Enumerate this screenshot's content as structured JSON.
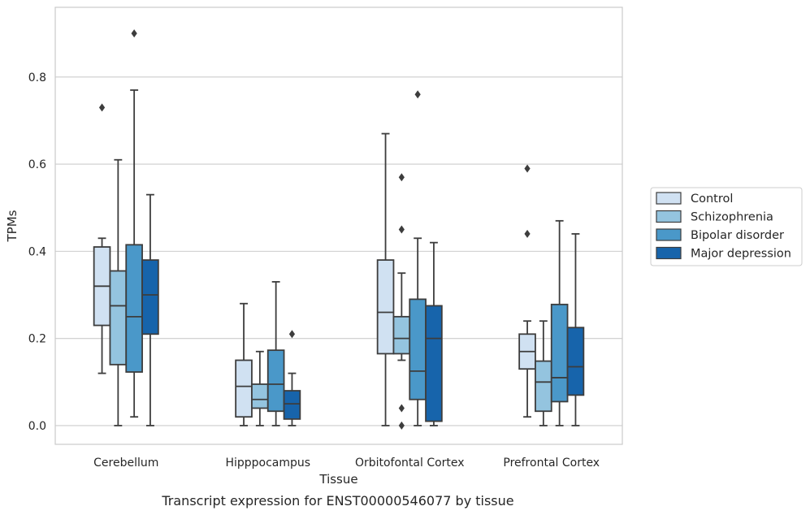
{
  "caption": "Transcript expression for ENST00000546077 by tissue",
  "chart_data": {
    "type": "box",
    "title": "",
    "xlabel": "Tissue",
    "ylabel": "TPMs",
    "ylim": [
      -0.043,
      0.96
    ],
    "yticks": [
      "0.0",
      "0.2",
      "0.4",
      "0.6",
      "0.8"
    ],
    "grid": "horizontal",
    "legend_position": "right",
    "categories": [
      "Cerebellum",
      "Hipppocampus",
      "Orbitofontal Cortex",
      "Prefrontal Cortex"
    ],
    "series": [
      {
        "name": "Control",
        "color": "#d0e1f2",
        "boxes": [
          {
            "whislo": 0.12,
            "q1": 0.23,
            "med": 0.32,
            "q3": 0.41,
            "whishi": 0.43,
            "fliers": [
              0.73
            ]
          },
          {
            "whislo": 0.0,
            "q1": 0.02,
            "med": 0.09,
            "q3": 0.15,
            "whishi": 0.28,
            "fliers": []
          },
          {
            "whislo": 0.0,
            "q1": 0.165,
            "med": 0.26,
            "q3": 0.38,
            "whishi": 0.67,
            "fliers": []
          },
          {
            "whislo": 0.02,
            "q1": 0.13,
            "med": 0.17,
            "q3": 0.21,
            "whishi": 0.24,
            "fliers": [
              0.44,
              0.59
            ]
          }
        ]
      },
      {
        "name": "Schizophrenia",
        "color": "#94c4df",
        "boxes": [
          {
            "whislo": 0.0,
            "q1": 0.14,
            "med": 0.275,
            "q3": 0.355,
            "whishi": 0.61,
            "fliers": []
          },
          {
            "whislo": 0.0,
            "q1": 0.04,
            "med": 0.06,
            "q3": 0.095,
            "whishi": 0.17,
            "fliers": []
          },
          {
            "whislo": 0.15,
            "q1": 0.165,
            "med": 0.2,
            "q3": 0.25,
            "whishi": 0.35,
            "fliers": [
              0.57,
              0.45,
              0.04,
              0.0
            ]
          },
          {
            "whislo": 0.0,
            "q1": 0.033,
            "med": 0.1,
            "q3": 0.148,
            "whishi": 0.24,
            "fliers": []
          }
        ]
      },
      {
        "name": "Bipolar disorder",
        "color": "#4a98c9",
        "boxes": [
          {
            "whislo": 0.02,
            "q1": 0.123,
            "med": 0.25,
            "q3": 0.415,
            "whishi": 0.77,
            "fliers": [
              0.9
            ]
          },
          {
            "whislo": 0.0,
            "q1": 0.033,
            "med": 0.095,
            "q3": 0.173,
            "whishi": 0.33,
            "fliers": []
          },
          {
            "whislo": 0.0,
            "q1": 0.06,
            "med": 0.125,
            "q3": 0.29,
            "whishi": 0.43,
            "fliers": [
              0.76
            ]
          },
          {
            "whislo": 0.0,
            "q1": 0.055,
            "med": 0.11,
            "q3": 0.278,
            "whishi": 0.47,
            "fliers": []
          }
        ]
      },
      {
        "name": "Major depression",
        "color": "#1764ab",
        "boxes": [
          {
            "whislo": 0.0,
            "q1": 0.21,
            "med": 0.3,
            "q3": 0.38,
            "whishi": 0.53,
            "fliers": []
          },
          {
            "whislo": 0.0,
            "q1": 0.015,
            "med": 0.05,
            "q3": 0.08,
            "whishi": 0.12,
            "fliers": [
              0.21
            ]
          },
          {
            "whislo": 0.0,
            "q1": 0.01,
            "med": 0.2,
            "q3": 0.275,
            "whishi": 0.42,
            "fliers": []
          },
          {
            "whislo": 0.0,
            "q1": 0.07,
            "med": 0.135,
            "q3": 0.225,
            "whishi": 0.44,
            "fliers": []
          }
        ]
      }
    ]
  }
}
